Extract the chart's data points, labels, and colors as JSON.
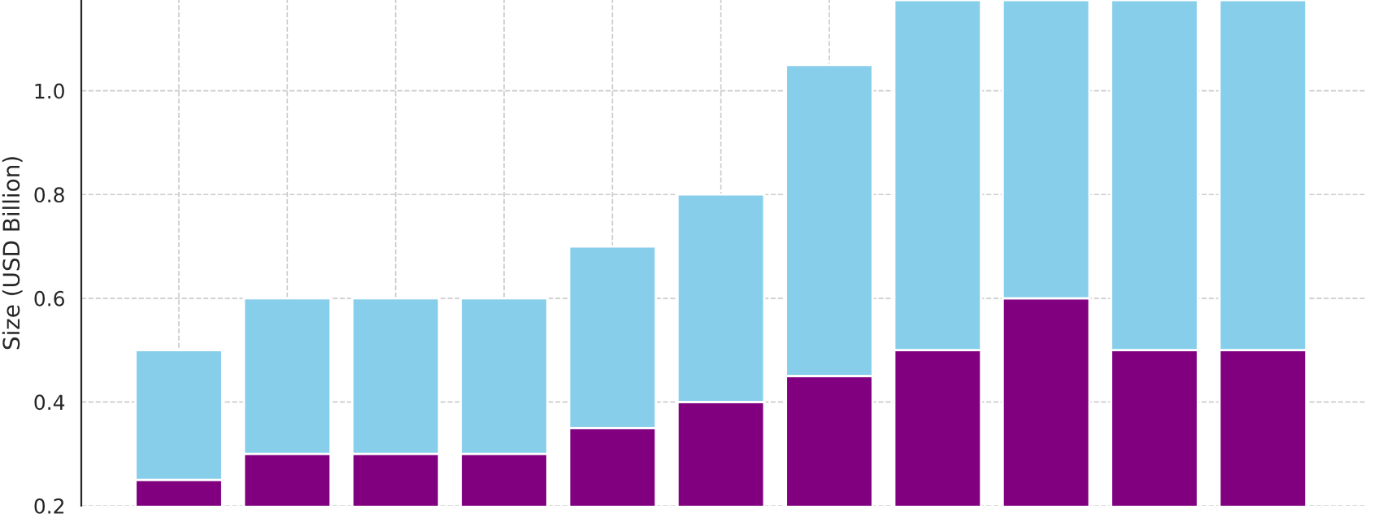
{
  "chart_data": {
    "type": "bar",
    "stacked": true,
    "ylabel": "Size (USD Billion)",
    "categories": [
      null,
      null,
      null,
      null,
      null,
      null,
      null,
      null,
      null,
      null,
      null
    ],
    "series": [
      {
        "color": "#800080",
        "values": [
          0.25,
          0.3,
          0.3,
          0.3,
          0.35,
          0.4,
          0.45,
          0.5,
          0.6,
          0.5,
          0.5
        ]
      },
      {
        "color": "#87ceeb",
        "values": [
          0.25,
          0.3,
          0.3,
          0.3,
          0.35,
          0.4,
          0.6,
          0.675,
          0.575,
          0.675,
          0.675
        ]
      }
    ],
    "ylim": [
      0.2,
      1.175
    ],
    "yticks": [
      0.2,
      0.4,
      0.6,
      0.8,
      {
        "value": 1,
        "label": "1.0"
      }
    ],
    "grid": true,
    "legend": false
  }
}
